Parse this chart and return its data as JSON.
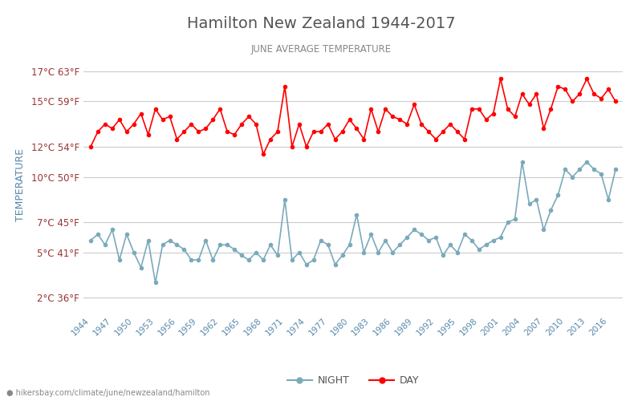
{
  "title": "Hamilton New Zealand 1944-2017",
  "subtitle": "JUNE AVERAGE TEMPERATURE",
  "ylabel": "TEMPERATURE",
  "url_text": "hikersbay.com/climate/june/newzealand/hamilton",
  "background_color": "#ffffff",
  "plot_bg_color": "#ffffff",
  "grid_color": "#cccccc",
  "title_color": "#555555",
  "subtitle_color": "#777777",
  "ylabel_color": "#5588aa",
  "tick_color_left": "#993333",
  "tick_color_bottom": "#5588aa",
  "day_color": "#ff0000",
  "night_color": "#7aaabb",
  "years": [
    1944,
    1945,
    1946,
    1947,
    1948,
    1949,
    1950,
    1951,
    1952,
    1953,
    1954,
    1955,
    1956,
    1957,
    1958,
    1959,
    1960,
    1961,
    1962,
    1963,
    1964,
    1965,
    1966,
    1967,
    1968,
    1969,
    1970,
    1971,
    1972,
    1973,
    1974,
    1975,
    1976,
    1977,
    1978,
    1979,
    1980,
    1981,
    1982,
    1983,
    1984,
    1985,
    1986,
    1987,
    1988,
    1989,
    1990,
    1991,
    1992,
    1993,
    1994,
    1995,
    1996,
    1997,
    1998,
    1999,
    2000,
    2001,
    2002,
    2003,
    2004,
    2005,
    2006,
    2007,
    2008,
    2009,
    2010,
    2011,
    2012,
    2013,
    2014,
    2015,
    2016,
    2017
  ],
  "day_temps": [
    12.0,
    13.0,
    13.5,
    13.2,
    13.8,
    13.0,
    13.5,
    14.2,
    12.8,
    14.5,
    13.8,
    14.0,
    12.5,
    13.0,
    13.5,
    13.0,
    13.2,
    13.8,
    14.5,
    13.0,
    12.8,
    13.5,
    14.0,
    13.5,
    11.5,
    12.5,
    13.0,
    16.0,
    12.0,
    13.5,
    12.0,
    13.0,
    13.0,
    13.5,
    12.5,
    13.0,
    13.8,
    13.2,
    12.5,
    14.5,
    13.0,
    14.5,
    14.0,
    13.8,
    13.5,
    14.8,
    13.5,
    13.0,
    12.5,
    13.0,
    13.5,
    13.0,
    12.5,
    14.5,
    14.5,
    13.8,
    14.2,
    16.5,
    14.5,
    14.0,
    15.5,
    14.8,
    15.5,
    13.2,
    14.5,
    16.0,
    15.8,
    15.0,
    15.5,
    16.5,
    15.5,
    15.2,
    15.8,
    15.0
  ],
  "night_temps": [
    5.8,
    6.2,
    5.5,
    6.5,
    4.5,
    6.2,
    5.0,
    4.0,
    5.8,
    3.0,
    5.5,
    5.8,
    5.5,
    5.2,
    4.5,
    4.5,
    5.8,
    4.5,
    5.5,
    5.5,
    5.2,
    4.8,
    4.5,
    5.0,
    4.5,
    5.5,
    4.8,
    8.5,
    4.5,
    5.0,
    4.2,
    4.5,
    5.8,
    5.5,
    4.2,
    4.8,
    5.5,
    7.5,
    5.0,
    6.2,
    5.0,
    5.8,
    5.0,
    5.5,
    6.0,
    6.5,
    6.2,
    5.8,
    6.0,
    4.8,
    5.5,
    5.0,
    6.2,
    5.8,
    5.2,
    5.5,
    5.8,
    6.0,
    7.0,
    7.2,
    11.0,
    8.2,
    8.5,
    6.5,
    7.8,
    8.8,
    10.5,
    10.0,
    10.5,
    11.0,
    10.5,
    10.2,
    8.5,
    10.5
  ],
  "yticks_c": [
    2,
    5,
    7,
    10,
    12,
    15,
    17
  ],
  "yticks_f": [
    36,
    41,
    45,
    50,
    54,
    59,
    63
  ],
  "xtick_years": [
    1944,
    1947,
    1950,
    1953,
    1956,
    1959,
    1962,
    1965,
    1968,
    1971,
    1974,
    1977,
    1980,
    1983,
    1986,
    1989,
    1992,
    1995,
    1998,
    2001,
    2004,
    2007,
    2010,
    2013,
    2016
  ]
}
